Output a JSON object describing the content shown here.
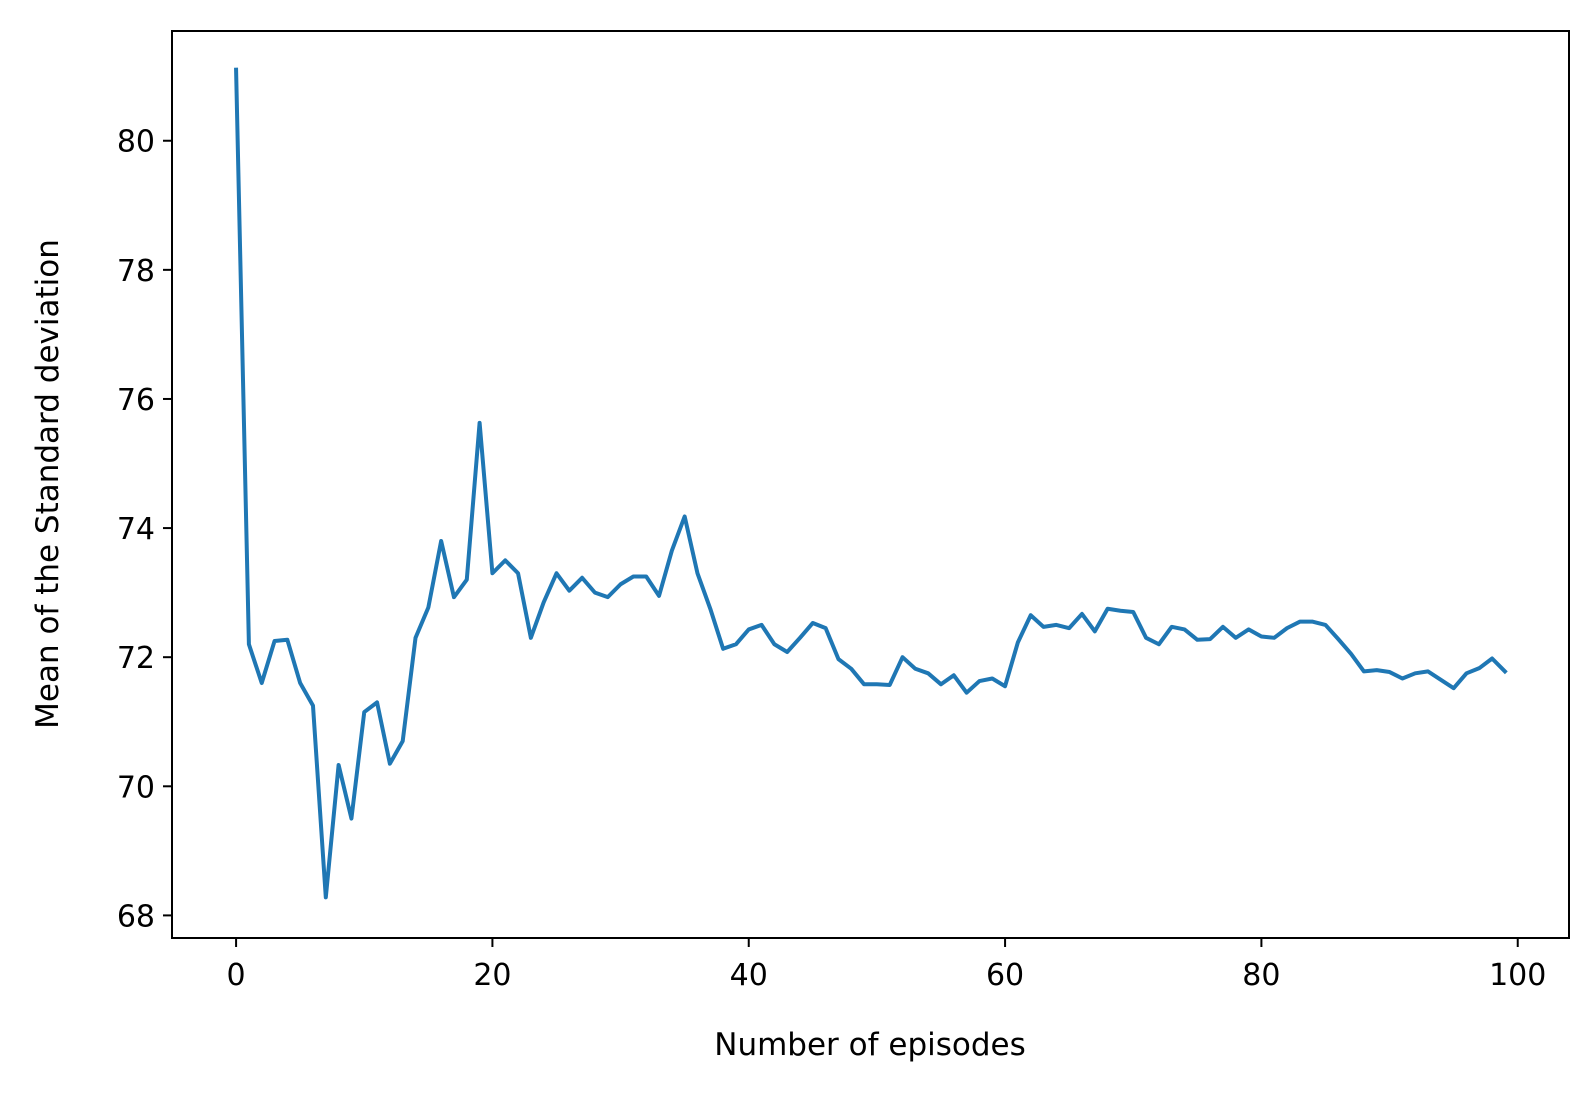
{
  "chart_data": {
    "type": "line",
    "title": "",
    "xlabel": "Number of episodes",
    "ylabel": "Mean of the Standard deviation",
    "xlim": [
      -5,
      104
    ],
    "ylim": [
      67.65,
      81.7
    ],
    "xticks": [
      0,
      20,
      40,
      60,
      80,
      100
    ],
    "yticks": [
      68,
      70,
      72,
      74,
      76,
      78,
      80
    ],
    "grid": false,
    "legend": "none",
    "colors": {
      "line": "#1f77b4",
      "axes": "#000000",
      "background": "#ffffff"
    },
    "series": [
      {
        "x": [
          0,
          1,
          2,
          3,
          4,
          5,
          6,
          7,
          8,
          9,
          10,
          11,
          12,
          13,
          14,
          15,
          16,
          17,
          18,
          19,
          20,
          21,
          22,
          23,
          24,
          25,
          26,
          27,
          28,
          29,
          30,
          31,
          32,
          33,
          34,
          35,
          36,
          37,
          38,
          39,
          40,
          41,
          42,
          43,
          44,
          45,
          46,
          47,
          48,
          49,
          50,
          51,
          52,
          53,
          54,
          55,
          56,
          57,
          58,
          59,
          60,
          61,
          62,
          63,
          64,
          65,
          66,
          67,
          68,
          69,
          70,
          71,
          72,
          73,
          74,
          75,
          76,
          77,
          78,
          79,
          80,
          81,
          82,
          83,
          84,
          85,
          86,
          87,
          88,
          89,
          90,
          91,
          92,
          93,
          94,
          95,
          96,
          97,
          98,
          99
        ],
        "values": [
          81.1,
          72.2,
          71.6,
          72.25,
          72.27,
          71.6,
          71.25,
          68.28,
          70.33,
          69.5,
          71.15,
          71.3,
          70.35,
          70.7,
          72.3,
          72.77,
          73.8,
          72.93,
          73.2,
          75.63,
          73.3,
          73.5,
          73.3,
          72.3,
          72.85,
          73.3,
          73.03,
          73.23,
          73.0,
          72.93,
          73.13,
          73.25,
          73.25,
          72.95,
          73.65,
          74.18,
          73.3,
          72.75,
          72.13,
          72.2,
          72.43,
          72.5,
          72.2,
          72.08,
          72.3,
          72.53,
          72.45,
          71.97,
          71.82,
          71.58,
          71.58,
          71.57,
          72.0,
          71.82,
          71.75,
          71.58,
          71.72,
          71.45,
          71.63,
          71.67,
          71.55,
          72.23,
          72.65,
          72.47,
          72.5,
          72.45,
          72.67,
          72.4,
          72.75,
          72.72,
          72.7,
          72.3,
          72.2,
          72.47,
          72.43,
          72.27,
          72.28,
          72.47,
          72.3,
          72.43,
          72.32,
          72.3,
          72.45,
          72.55,
          72.55,
          72.5,
          72.28,
          72.05,
          71.78,
          71.8,
          71.77,
          71.67,
          71.75,
          71.78,
          71.65,
          71.52,
          71.75,
          71.83,
          71.98,
          71.78
        ]
      }
    ]
  }
}
